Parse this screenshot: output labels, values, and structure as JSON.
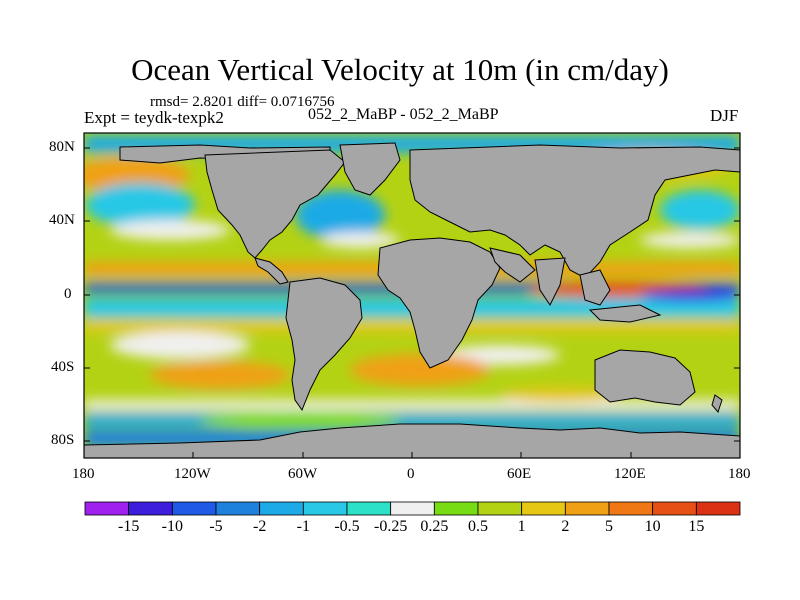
{
  "title": "Ocean Vertical Velocity at 10m (in cm/day)",
  "stats": "rmsd= 2.8201 diff= 0.0716756",
  "experiment": "Expt = teydk-texpk2",
  "comparison": "052_2_MaBP - 052_2_MaBP",
  "season": "DJF",
  "map": {
    "y_ticks": [
      "80N",
      "40N",
      "0",
      "40S",
      "80S"
    ],
    "x_ticks": [
      "180",
      "120W",
      "60W",
      "0",
      "60E",
      "120E",
      "180"
    ],
    "land_color": "#a6a6a6"
  },
  "colorbar": {
    "labels": [
      "-15",
      "-10",
      "-5",
      "-2",
      "-1",
      "-0.5",
      "-0.25",
      "0.25",
      "0.5",
      "1",
      "2",
      "5",
      "10",
      "15"
    ],
    "colors": [
      "#a020f0",
      "#3c1edc",
      "#1e5ae6",
      "#1e82dc",
      "#1eaae6",
      "#28c8e6",
      "#2de0c8",
      "#f0f0f0",
      "#78dc14",
      "#b4d214",
      "#e6c814",
      "#f0a014",
      "#f07814",
      "#e65014",
      "#dc3214"
    ]
  }
}
